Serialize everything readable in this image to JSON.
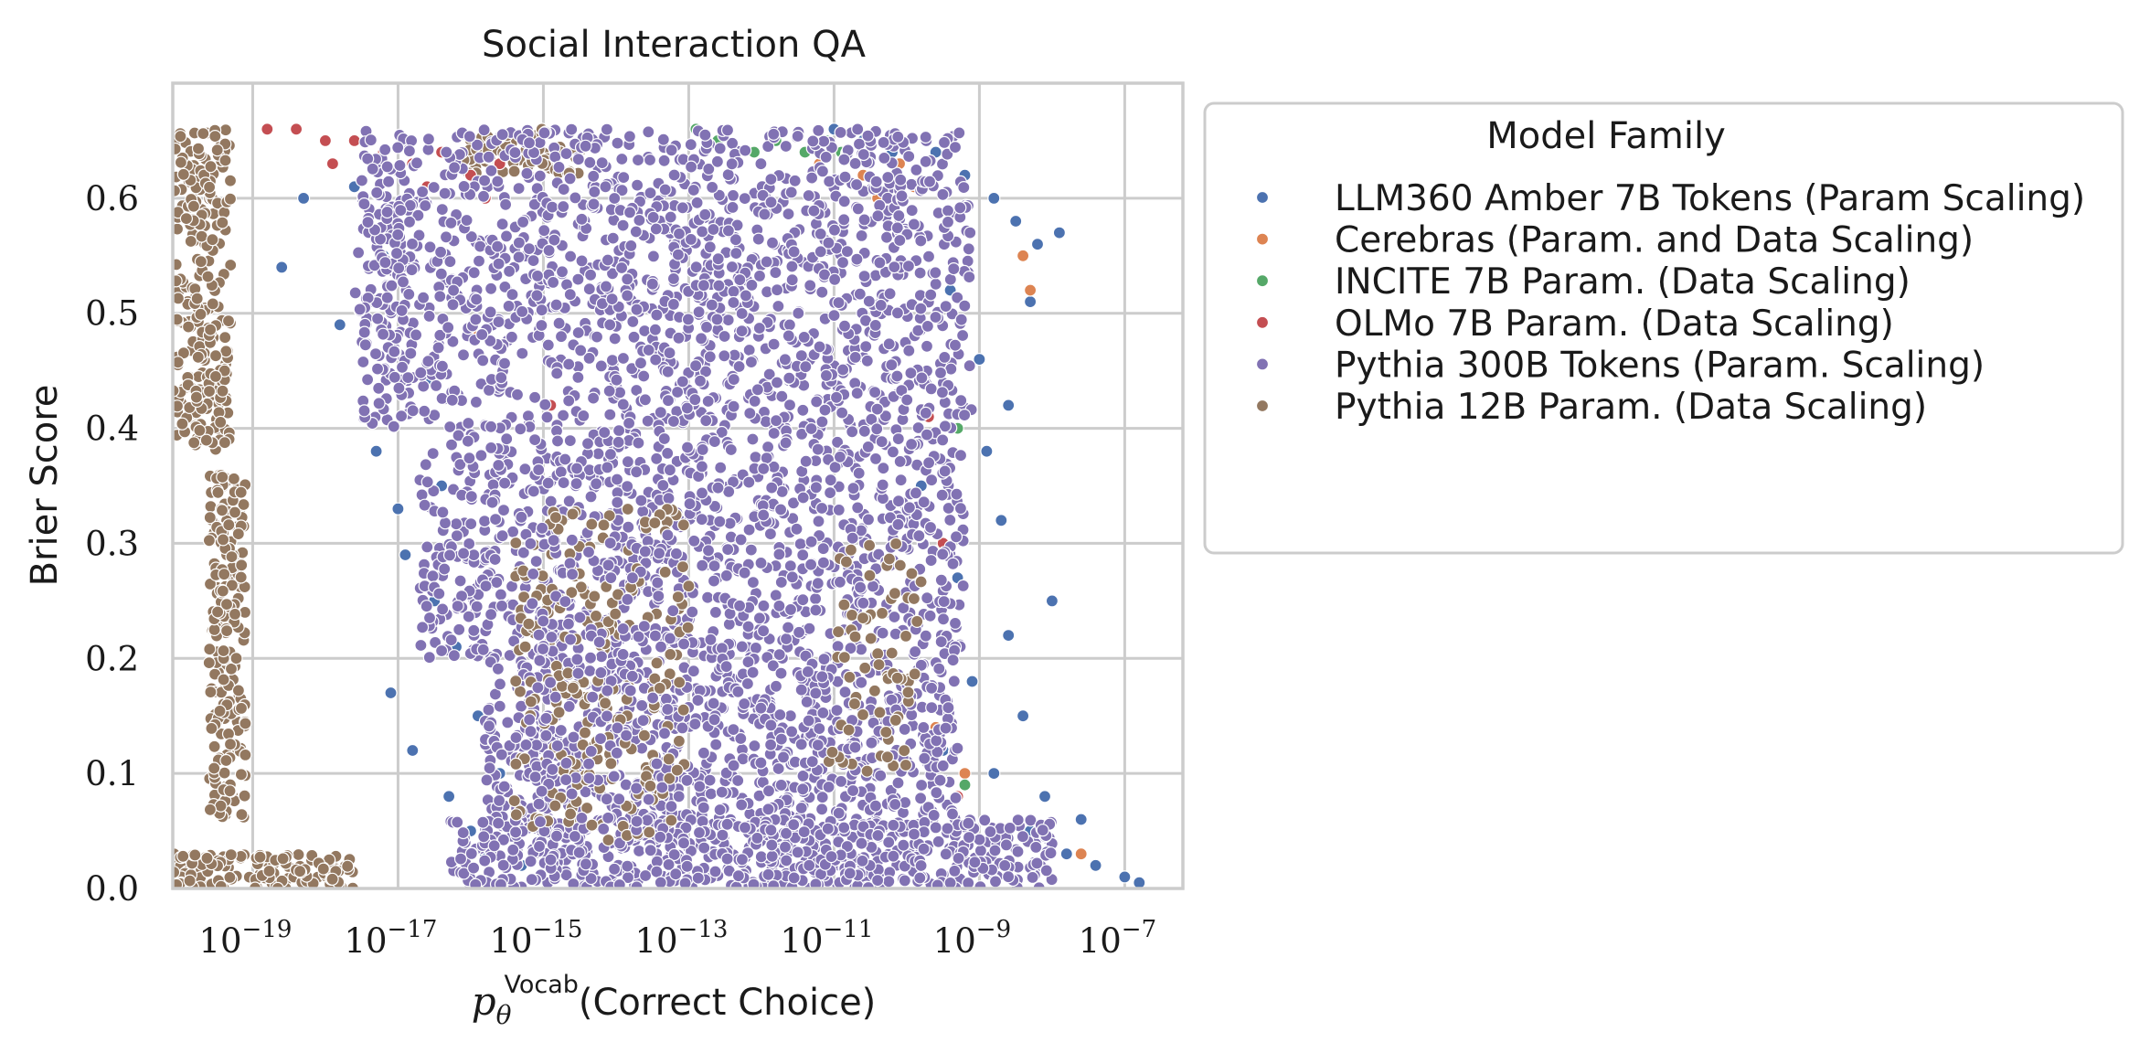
{
  "chart_data": {
    "type": "scatter",
    "title": "Social Interaction QA",
    "xlabel": {
      "symbol": "p",
      "subscript": "θ",
      "superscript": "Vocab",
      "text": "(Correct Choice)"
    },
    "ylabel": "Brier Score",
    "xscale": "log",
    "xlim_log10": [
      -20.1,
      -6.2
    ],
    "ylim": [
      0.0,
      0.7
    ],
    "x_ticks": [
      {
        "base": "10",
        "exp": "−19",
        "log10": -19
      },
      {
        "base": "10",
        "exp": "−17",
        "log10": -17
      },
      {
        "base": "10",
        "exp": "−15",
        "log10": -15
      },
      {
        "base": "10",
        "exp": "−13",
        "log10": -13
      },
      {
        "base": "10",
        "exp": "−11",
        "log10": -11
      },
      {
        "base": "10",
        "exp": "−9",
        "log10": -9
      },
      {
        "base": "10",
        "exp": "−7",
        "log10": -7
      }
    ],
    "y_ticks": [
      {
        "value": 0.0,
        "label": "0.0"
      },
      {
        "value": 0.1,
        "label": "0.1"
      },
      {
        "value": 0.2,
        "label": "0.2"
      },
      {
        "value": 0.3,
        "label": "0.3"
      },
      {
        "value": 0.4,
        "label": "0.4"
      },
      {
        "value": 0.5,
        "label": "0.5"
      },
      {
        "value": 0.6,
        "label": "0.6"
      }
    ],
    "grid": true,
    "legend": {
      "title": "Model Family",
      "placement": "outside-right-top"
    },
    "series": [
      {
        "name": "LLM360 Amber 7B Tokens (Param Scaling)",
        "color": "#4c72b0",
        "points": [
          [
            -18.6,
            0.54
          ],
          [
            -18.3,
            0.6
          ],
          [
            -17.8,
            0.49
          ],
          [
            -17.3,
            0.38
          ],
          [
            -17.0,
            0.33
          ],
          [
            -16.9,
            0.29
          ],
          [
            -16.5,
            0.25
          ],
          [
            -17.1,
            0.17
          ],
          [
            -16.8,
            0.12
          ],
          [
            -16.3,
            0.08
          ],
          [
            -16.0,
            0.05
          ],
          [
            -15.8,
            0.03
          ],
          [
            -16.6,
            0.44
          ],
          [
            -17.2,
            0.55
          ],
          [
            -17.6,
            0.61
          ],
          [
            -16.2,
            0.21
          ],
          [
            -15.9,
            0.15
          ],
          [
            -15.6,
            0.1
          ],
          [
            -16.4,
            0.35
          ],
          [
            -15.3,
            0.02
          ],
          [
            -9.6,
            0.64
          ],
          [
            -9.2,
            0.62
          ],
          [
            -8.8,
            0.6
          ],
          [
            -8.5,
            0.58
          ],
          [
            -8.2,
            0.56
          ],
          [
            -9.0,
            0.46
          ],
          [
            -8.9,
            0.38
          ],
          [
            -8.7,
            0.32
          ],
          [
            -9.3,
            0.27
          ],
          [
            -8.6,
            0.22
          ],
          [
            -9.1,
            0.18
          ],
          [
            -8.4,
            0.15
          ],
          [
            -8.8,
            0.1
          ],
          [
            -8.1,
            0.08
          ],
          [
            -8.3,
            0.05
          ],
          [
            -7.8,
            0.03
          ],
          [
            -7.4,
            0.02
          ],
          [
            -7.0,
            0.01
          ],
          [
            -6.8,
            0.005
          ],
          [
            -8.0,
            0.25
          ],
          [
            -8.6,
            0.42
          ],
          [
            -9.4,
            0.52
          ],
          [
            -8.3,
            0.51
          ],
          [
            -7.9,
            0.57
          ],
          [
            -10.2,
            0.64
          ],
          [
            -10.6,
            0.65
          ],
          [
            -11.0,
            0.66
          ],
          [
            -9.8,
            0.35
          ],
          [
            -9.5,
            0.12
          ],
          [
            -7.6,
            0.06
          ]
        ]
      },
      {
        "name": "Cerebras (Param. and Data Scaling)",
        "color": "#dd8452",
        "points": [
          [
            -10.6,
            0.62
          ],
          [
            -10.4,
            0.6
          ],
          [
            -10.1,
            0.63
          ],
          [
            -9.9,
            0.61
          ],
          [
            -10.8,
            0.64
          ],
          [
            -11.2,
            0.63
          ],
          [
            -8.4,
            0.55
          ],
          [
            -8.3,
            0.52
          ],
          [
            -9.6,
            0.14
          ],
          [
            -9.2,
            0.1
          ],
          [
            -7.6,
            0.03
          ],
          [
            -15.9,
            0.48
          ]
        ]
      },
      {
        "name": "INCITE 7B Param. (Data Scaling)",
        "color": "#55a868",
        "points": [
          [
            -12.6,
            0.65
          ],
          [
            -12.1,
            0.64
          ],
          [
            -11.8,
            0.65
          ],
          [
            -11.4,
            0.64
          ],
          [
            -11.1,
            0.65
          ],
          [
            -10.9,
            0.64
          ],
          [
            -9.3,
            0.4
          ],
          [
            -9.2,
            0.09
          ],
          [
            -12.9,
            0.66
          ]
        ]
      },
      {
        "name": "OLMo 7B Param. (Data Scaling)",
        "color": "#c44e52",
        "points": [
          [
            -18.8,
            0.66
          ],
          [
            -18.4,
            0.66
          ],
          [
            -18.0,
            0.65
          ],
          [
            -17.6,
            0.65
          ],
          [
            -17.2,
            0.64
          ],
          [
            -16.8,
            0.63
          ],
          [
            -16.4,
            0.64
          ],
          [
            -16.0,
            0.62
          ],
          [
            -15.6,
            0.63
          ],
          [
            -15.2,
            0.62
          ],
          [
            -17.9,
            0.63
          ],
          [
            -16.6,
            0.61
          ],
          [
            -15.8,
            0.6
          ],
          [
            -14.9,
            0.42
          ],
          [
            -14.2,
            0.22
          ],
          [
            -13.5,
            0.18
          ],
          [
            -9.5,
            0.3
          ],
          [
            -9.3,
            0.08
          ],
          [
            -9.7,
            0.41
          ]
        ]
      },
      {
        "name": "Pythia 300B Tokens (Param. Scaling)",
        "color": "#8172b3",
        "cloud": [
          {
            "x": [
              -17.5,
              -9.1
            ],
            "y": [
              0.4,
              0.66
            ],
            "n": 1400
          },
          {
            "x": [
              -16.7,
              -9.2
            ],
            "y": [
              0.2,
              0.4
            ],
            "n": 950
          },
          {
            "x": [
              -15.8,
              -9.3
            ],
            "y": [
              0.05,
              0.2
            ],
            "n": 800
          },
          {
            "x": [
              -16.3,
              -8.0
            ],
            "y": [
              0.0,
              0.06
            ],
            "n": 650
          },
          {
            "x": [
              -17.6,
              -16.8
            ],
            "y": [
              0.45,
              0.62
            ],
            "n": 50
          }
        ]
      },
      {
        "name": "Pythia 12B Param. (Data Scaling)",
        "color": "#937860",
        "cloud": [
          {
            "x": [
              -20.1,
              -19.3
            ],
            "y": [
              0.38,
              0.66
            ],
            "n": 260
          },
          {
            "x": [
              -19.6,
              -19.1
            ],
            "y": [
              0.06,
              0.36
            ],
            "n": 220
          },
          {
            "x": [
              -20.1,
              -17.6
            ],
            "y": [
              0.0,
              0.03
            ],
            "n": 140
          },
          {
            "x": [
              -15.4,
              -13.0
            ],
            "y": [
              0.04,
              0.33
            ],
            "n": 420
          },
          {
            "x": [
              -11.1,
              -9.8
            ],
            "y": [
              0.1,
              0.3
            ],
            "n": 120
          },
          {
            "x": [
              -16.2,
              -14.5
            ],
            "y": [
              0.62,
              0.66
            ],
            "n": 60
          }
        ]
      }
    ]
  }
}
